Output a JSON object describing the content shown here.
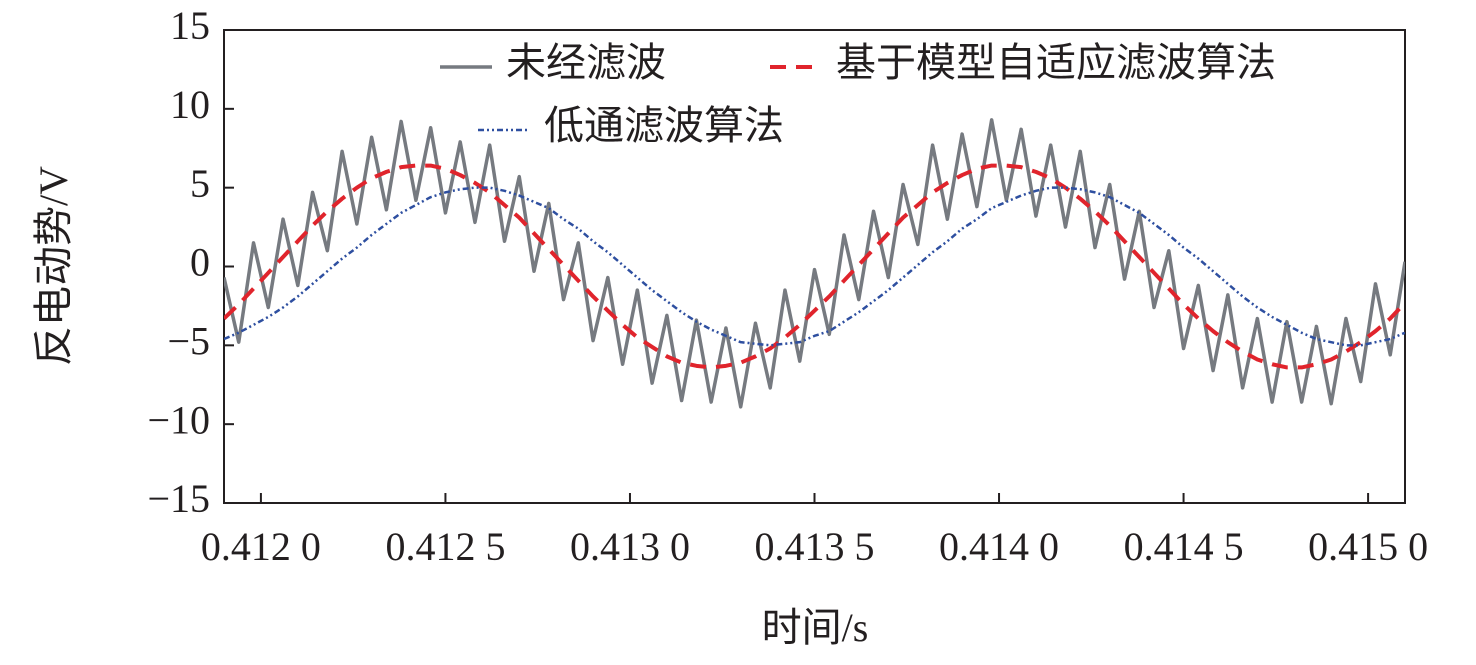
{
  "chart_data": {
    "type": "line",
    "xlabel": "时间/s",
    "ylabel": "反电动势/V",
    "x": [
      0.4119,
      0.41194,
      0.41198,
      0.41202,
      0.41206,
      0.4121,
      0.41214,
      0.41218,
      0.41222,
      0.41226,
      0.4123,
      0.41234,
      0.41238,
      0.41242,
      0.41246,
      0.4125,
      0.41254,
      0.41258,
      0.41262,
      0.41266,
      0.4127,
      0.41274,
      0.41278,
      0.41282,
      0.41286,
      0.4129,
      0.41294,
      0.41298,
      0.41302,
      0.41306,
      0.4131,
      0.41314,
      0.41318,
      0.41322,
      0.41326,
      0.4133,
      0.41334,
      0.41338,
      0.41342,
      0.41346,
      0.4135,
      0.41354,
      0.41358,
      0.41362,
      0.41366,
      0.4137,
      0.41374,
      0.41378,
      0.41382,
      0.41386,
      0.4139,
      0.41394,
      0.41398,
      0.41402,
      0.41406,
      0.4141,
      0.41414,
      0.41418,
      0.41422,
      0.41426,
      0.4143,
      0.41434,
      0.41438,
      0.41442,
      0.41446,
      0.4145,
      0.41454,
      0.41458,
      0.41462,
      0.41466,
      0.4147,
      0.41474,
      0.41478,
      0.41482,
      0.41486,
      0.4149,
      0.41494,
      0.41498,
      0.41502,
      0.41506,
      0.4151
    ],
    "series": [
      {
        "name": "未经滤波",
        "color": "#767a80",
        "style": "solid",
        "width": 3.5,
        "values": [
          -0.7,
          -4.8,
          1.5,
          -2.6,
          3.0,
          -1.2,
          4.7,
          1.0,
          7.3,
          2.7,
          8.2,
          3.6,
          9.2,
          4.2,
          8.8,
          3.4,
          7.9,
          2.8,
          7.7,
          1.6,
          5.7,
          -0.3,
          4.0,
          -2.1,
          1.5,
          -4.7,
          -0.7,
          -6.2,
          -1.5,
          -7.4,
          -3.1,
          -8.5,
          -3.4,
          -8.6,
          -3.9,
          -8.9,
          -3.6,
          -7.7,
          -1.5,
          -6.0,
          -0.2,
          -4.3,
          2.0,
          -2.1,
          3.5,
          -0.7,
          5.2,
          1.4,
          7.7,
          3.0,
          8.4,
          3.8,
          9.3,
          4.2,
          8.7,
          3.2,
          7.7,
          2.5,
          7.3,
          1.2,
          5.2,
          -0.8,
          3.5,
          -2.6,
          1.0,
          -5.2,
          -1.2,
          -6.6,
          -1.8,
          -7.7,
          -3.3,
          -8.6,
          -3.5,
          -8.6,
          -3.8,
          -8.7,
          -3.3,
          -7.3,
          -1.1,
          -5.6,
          0.3
        ]
      },
      {
        "name": "基于模型自适应滤波算法",
        "color": "#e0242c",
        "style": "dashed",
        "width": 4,
        "values": [
          -3.3,
          -2.4,
          -1.4,
          -0.4,
          0.6,
          1.6,
          2.6,
          3.5,
          4.3,
          5.0,
          5.6,
          6.0,
          6.3,
          6.4,
          6.4,
          6.2,
          5.8,
          5.3,
          4.7,
          3.9,
          3.1,
          2.1,
          1.1,
          0.1,
          -0.9,
          -1.9,
          -2.8,
          -3.7,
          -4.5,
          -5.1,
          -5.7,
          -6.1,
          -6.3,
          -6.4,
          -6.3,
          -6.1,
          -5.7,
          -5.2,
          -4.5,
          -3.7,
          -2.8,
          -1.9,
          -0.9,
          0.1,
          1.1,
          2.1,
          3.1,
          3.9,
          4.7,
          5.3,
          5.8,
          6.2,
          6.4,
          6.4,
          6.3,
          6.0,
          5.6,
          5.0,
          4.3,
          3.5,
          2.6,
          1.6,
          0.6,
          -0.4,
          -1.4,
          -2.4,
          -3.3,
          -4.1,
          -4.8,
          -5.4,
          -5.9,
          -6.2,
          -6.4,
          -6.4,
          -6.2,
          -5.9,
          -5.4,
          -4.8,
          -4.1,
          -3.3,
          -2.3
        ]
      },
      {
        "name": "低通滤波算法",
        "color": "#2e4fa0",
        "style": "dashdot",
        "width": 2.5,
        "values": [
          -4.6,
          -4.2,
          -3.7,
          -3.2,
          -2.6,
          -1.9,
          -1.1,
          -0.3,
          0.5,
          1.2,
          2.0,
          2.7,
          3.4,
          3.9,
          4.4,
          4.7,
          4.9,
          5.0,
          5.0,
          4.8,
          4.5,
          4.1,
          3.7,
          3.0,
          2.4,
          1.6,
          0.9,
          0.1,
          -0.7,
          -1.5,
          -2.2,
          -2.9,
          -3.5,
          -4.0,
          -4.4,
          -4.8,
          -4.9,
          -5.0,
          -4.9,
          -4.8,
          -4.4,
          -4.1,
          -3.5,
          -2.9,
          -2.2,
          -1.5,
          -0.7,
          0.1,
          0.9,
          1.6,
          2.4,
          3.0,
          3.7,
          4.1,
          4.5,
          4.8,
          5.0,
          5.0,
          4.9,
          4.7,
          4.4,
          3.9,
          3.4,
          2.7,
          2.0,
          1.2,
          0.5,
          -0.3,
          -1.1,
          -1.9,
          -2.6,
          -3.2,
          -3.7,
          -4.2,
          -4.6,
          -4.8,
          -5.0,
          -5.0,
          -4.8,
          -4.6,
          -4.2
        ]
      }
    ],
    "xlim": [
      0.4119,
      0.4151
    ],
    "xticks": [
      {
        "value": 0.412,
        "label": "0.412 0"
      },
      {
        "value": 0.4125,
        "label": "0.412 5"
      },
      {
        "value": 0.413,
        "label": "0.413 0"
      },
      {
        "value": 0.4135,
        "label": "0.413 5"
      },
      {
        "value": 0.414,
        "label": "0.414 0"
      },
      {
        "value": 0.4145,
        "label": "0.414 5"
      },
      {
        "value": 0.415,
        "label": "0.415 0"
      }
    ],
    "ylim": [
      -15,
      15
    ],
    "yticks": [
      {
        "value": -15,
        "label": "−15"
      },
      {
        "value": -10,
        "label": "−10"
      },
      {
        "value": -5,
        "label": "−5"
      },
      0,
      5,
      10,
      15
    ],
    "grid": false,
    "legend": "upper right"
  }
}
